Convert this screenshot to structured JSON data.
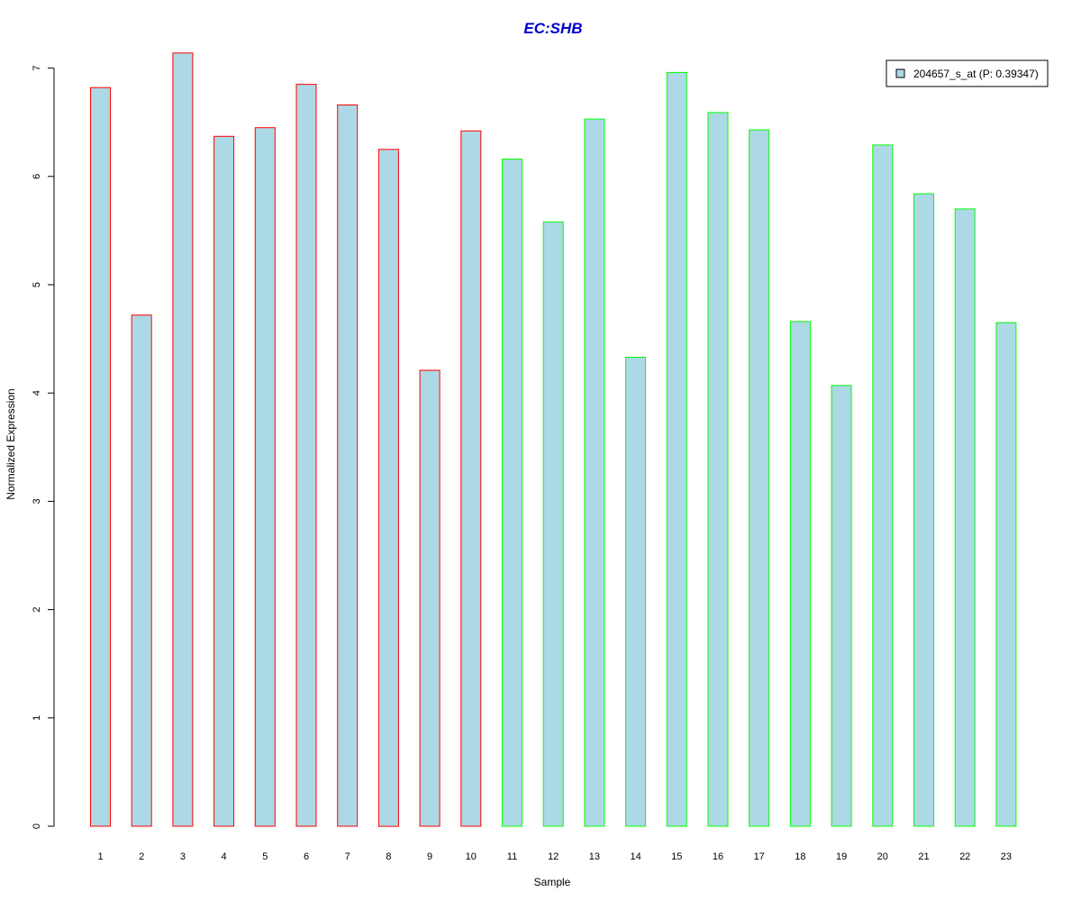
{
  "chart_data": {
    "type": "bar",
    "title": "EC:SHB",
    "xlabel": "Sample",
    "ylabel": "Normalized Expression",
    "categories": [
      "1",
      "2",
      "3",
      "4",
      "5",
      "6",
      "7",
      "8",
      "9",
      "10",
      "11",
      "12",
      "13",
      "14",
      "15",
      "16",
      "17",
      "18",
      "19",
      "20",
      "21",
      "22",
      "23"
    ],
    "values": [
      6.82,
      4.72,
      7.14,
      6.37,
      6.45,
      6.85,
      6.66,
      6.25,
      4.21,
      6.42,
      6.16,
      5.58,
      6.53,
      4.33,
      6.96,
      6.59,
      6.43,
      4.66,
      4.07,
      6.29,
      5.84,
      5.7,
      4.65
    ],
    "groups": [
      "red",
      "red",
      "red",
      "red",
      "red",
      "red",
      "red",
      "red",
      "red",
      "red",
      "green",
      "green",
      "green",
      "green",
      "green",
      "green",
      "green",
      "green",
      "green",
      "green",
      "green",
      "green",
      "green"
    ],
    "ylim": [
      0,
      7
    ],
    "yticks": [
      0,
      1,
      2,
      3,
      4,
      5,
      6,
      7
    ],
    "grid": false,
    "legend": {
      "placement": "top-right",
      "entries": [
        {
          "label": "204657_s_at (P: 0.39347)",
          "color": "#add8e6"
        }
      ]
    },
    "colors": {
      "bar_fill": "#add8e6",
      "border_group_1": "#ff0000",
      "border_group_2": "#00ff00",
      "title": "#0000cd"
    }
  }
}
